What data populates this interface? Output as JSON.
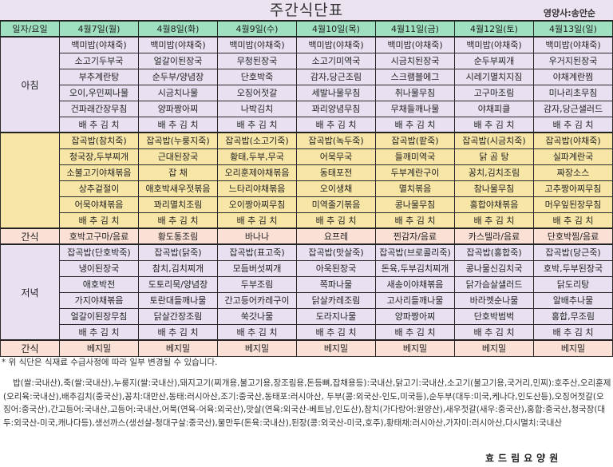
{
  "header": {
    "title": "주간식단표",
    "dietitian": "영양사:송안순"
  },
  "table": {
    "corner_label": "일자/요일",
    "days": [
      "4월7일(월)",
      "4월8일(화)",
      "4월9일(수)",
      "4월10일(목)",
      "4월11일(금)",
      "4월12일(토)",
      "4월13일(일)"
    ],
    "breakfast": {
      "label": "아침",
      "rows": [
        [
          "백미밥(야채죽)",
          "백미밥(야채죽)",
          "백미밥(야채죽)",
          "백미밥(야채죽)",
          "백미밥(야채죽)",
          "백미밥(야채죽)",
          "백미밥(야채죽)"
        ],
        [
          "소고기두부국",
          "얼갈이된장국",
          "무청된장국",
          "소고기미역국",
          "시금치된장국",
          "순두부찌개",
          "우거지된장국"
        ],
        [
          "부추계란탕",
          "순두부/양념장",
          "단호박죽",
          "감자,당근조림",
          "스크램블에그",
          "시레기멸치지짐",
          "야채계란찜"
        ],
        [
          "오이,우민찌나물",
          "시금치나물",
          "오징어젓갈",
          "세발나물무침",
          "취나물무침",
          "고구마조림",
          "미나리초무침"
        ],
        [
          "건파래간장무침",
          "양파짱아찌",
          "나박김치",
          "꽈리양념무침",
          "무채들깨나물",
          "야채피클",
          "감자,당근샐러드"
        ],
        [
          "배 추 김 치",
          "배 추 김 치",
          "배 추 김 치",
          "배 추 김 치",
          "배 추 김 치",
          "배 추 김 치",
          "배 추 김 치"
        ]
      ]
    },
    "lunch": {
      "label": "",
      "rows": [
        [
          "잡곡밥(참치죽)",
          "잡곡밥(누룽지죽)",
          "잡곡밥(소고기죽)",
          "잡곡밥(녹두죽)",
          "잡곡밥(팥죽)",
          "잡곡밥(시금치죽)",
          "잡곡밥(야채죽)"
        ],
        [
          "청국장,두부찌개",
          "근대된장국",
          "황태,두부,무국",
          "어묵무국",
          "들깨미역국",
          "닭 곰 탕",
          "실파계란국"
        ],
        [
          "소불고기야채볶음",
          "잡      채",
          "오리훈제야채볶음",
          "동태포전",
          "두부계란구이",
          "꽁치,김치조림",
          "짜장소스"
        ],
        [
          "상추겉절이",
          "애호박새우젓볶음",
          "느타리야채볶음",
          "오이생채",
          "멸치볶음",
          "참나물무침",
          "고추짱아찌무침"
        ],
        [
          "어묵야채볶음",
          "꽈리멸치조림",
          "오이짱아찌무침",
          "미역줄기볶음",
          "콩나물무침",
          "홍합야채볶음",
          "머우잎된장무침"
        ],
        [
          "배 추 김 치",
          "배 추 김 치",
          "배 추 김 치",
          "배 추 김 치",
          "배 추 김 치",
          "배 추 김 치",
          "배 추 김 치"
        ]
      ]
    },
    "snack1": {
      "label": "간식",
      "items": [
        "호박고구마/음료",
        "황도통조림",
        "바나나",
        "요프레",
        "찐감자/음료",
        "카스텔라/음료",
        "단호박찜/음료"
      ]
    },
    "dinner": {
      "label": "저녁",
      "rows": [
        [
          "잡곡밥(단호박죽)",
          "잡곡밥(닭죽)",
          "잡곡밥(표고죽)",
          "잡곡밥(맛살죽)",
          "잡곡밥(브로콜리죽)",
          "잡곡밥(홍합죽)",
          "잡곡밥(당근죽)"
        ],
        [
          "냉이된장국",
          "참치,김치찌개",
          "모듬버섯찌개",
          "아욱된장국",
          "돈육,두부김치찌개",
          "콩나물신김치국",
          "호박,두부된장국"
        ],
        [
          "애호박전",
          "도토리묵/양념장",
          "두부조림",
          "쪽파나물",
          "새송이야채볶음",
          "닭가슴살샐러드",
          "닭도리탕"
        ],
        [
          "가지야채볶음",
          "토란대들깨나물",
          "간고등어카레구이",
          "닭살카레조림",
          "고사리들깨나물",
          "바라껫순나물",
          "알배추나물"
        ],
        [
          "얼갈이된장무침",
          "닭살간장조림",
          "쑥갓나물",
          "도라지나물",
          "양파짱아찌",
          "단호박범벅",
          "홍합,무조림"
        ],
        [
          "배 추 김 치",
          "배 추 김 치",
          "배 추 김 치",
          "배 추 김 치",
          "배 추 김 치",
          "배 추 김 치",
          "배 추 김 치"
        ]
      ]
    },
    "snack2": {
      "label": "간식",
      "items": [
        "베지밀",
        "베지밀",
        "베지밀",
        "베지밀",
        "베지밀",
        "베지밀",
        "베지밀"
      ]
    }
  },
  "footer": {
    "note": "* 위 식단은 식재료 수급사정에 따라 일부 변경될 수 있습니다.",
    "origin": "밥(쌀:국내산),죽(쌀:국내산),누룽지(쌀:국내산),돼지고기(찌개용,불고기용,장조림용,돈등뼈,잡채용등):국내산,닭고기:국내산,소고기(불고기용,국거리,민찌):호주산,오리훈제(오리육:국내산),배추김치(중국산),꽁치:대만산,동태:러시아산,조기:중국산,동태포:러시아산, 두부(콩:외국산-인도,미국등),순두부(대두:미국,케나다,인도산등),오징어젓갈(오징어:중국산),간고등어:국내산,고등어:국내산,어묵(연육-어육:외국산),맛살(연육:외국산-베트남,인도산),참치(가다랑어:원양산),새우젓갈(새우:중국산),홍합:중국산,청국장(대두:외국산-미국,캐나다등),생선까스(생선살-청대구살:중국산),물만두(돈육:국내산),된장(콩:외국산-미국,호주),황태채:러시아산,가자미:러시아산,다시멸치:국내산",
    "facility": "효드림요양원"
  },
  "colors": {
    "header_bg": "#9fe0c0",
    "breakfast_bg": "#e9e1f1",
    "lunch_bg": "#f8e6a6",
    "snack_bg": "#fbe0d6",
    "dinner_bg": "#e9e1f1"
  }
}
